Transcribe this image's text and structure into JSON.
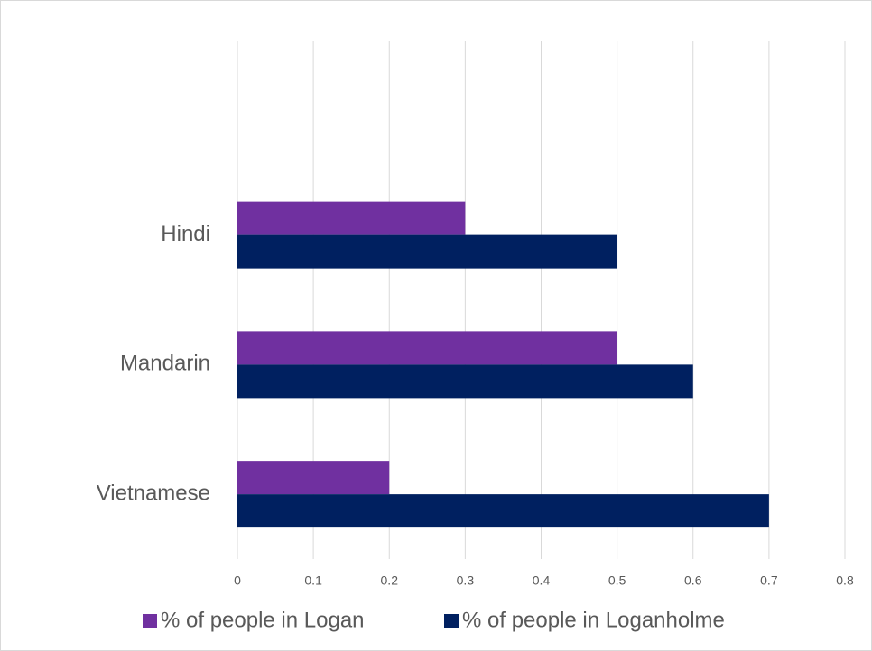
{
  "chart_data": {
    "type": "bar",
    "orientation": "horizontal",
    "categories": [
      "Vietnamese",
      "Mandarin",
      "Hindi",
      null
    ],
    "series": [
      {
        "name": "% of people in Logan",
        "color": "#7030a0",
        "values": [
          0.2,
          0.5,
          0.3,
          null
        ]
      },
      {
        "name": "% of people in Loganholme",
        "color": "#002060",
        "values": [
          0.7,
          0.6,
          0.5,
          null
        ]
      }
    ],
    "xlim": [
      0,
      0.8
    ],
    "xticks": [
      0,
      0.1,
      0.2,
      0.3,
      0.4,
      0.5,
      0.6,
      0.7,
      0.8
    ],
    "grid": true,
    "legend": "bottom"
  }
}
